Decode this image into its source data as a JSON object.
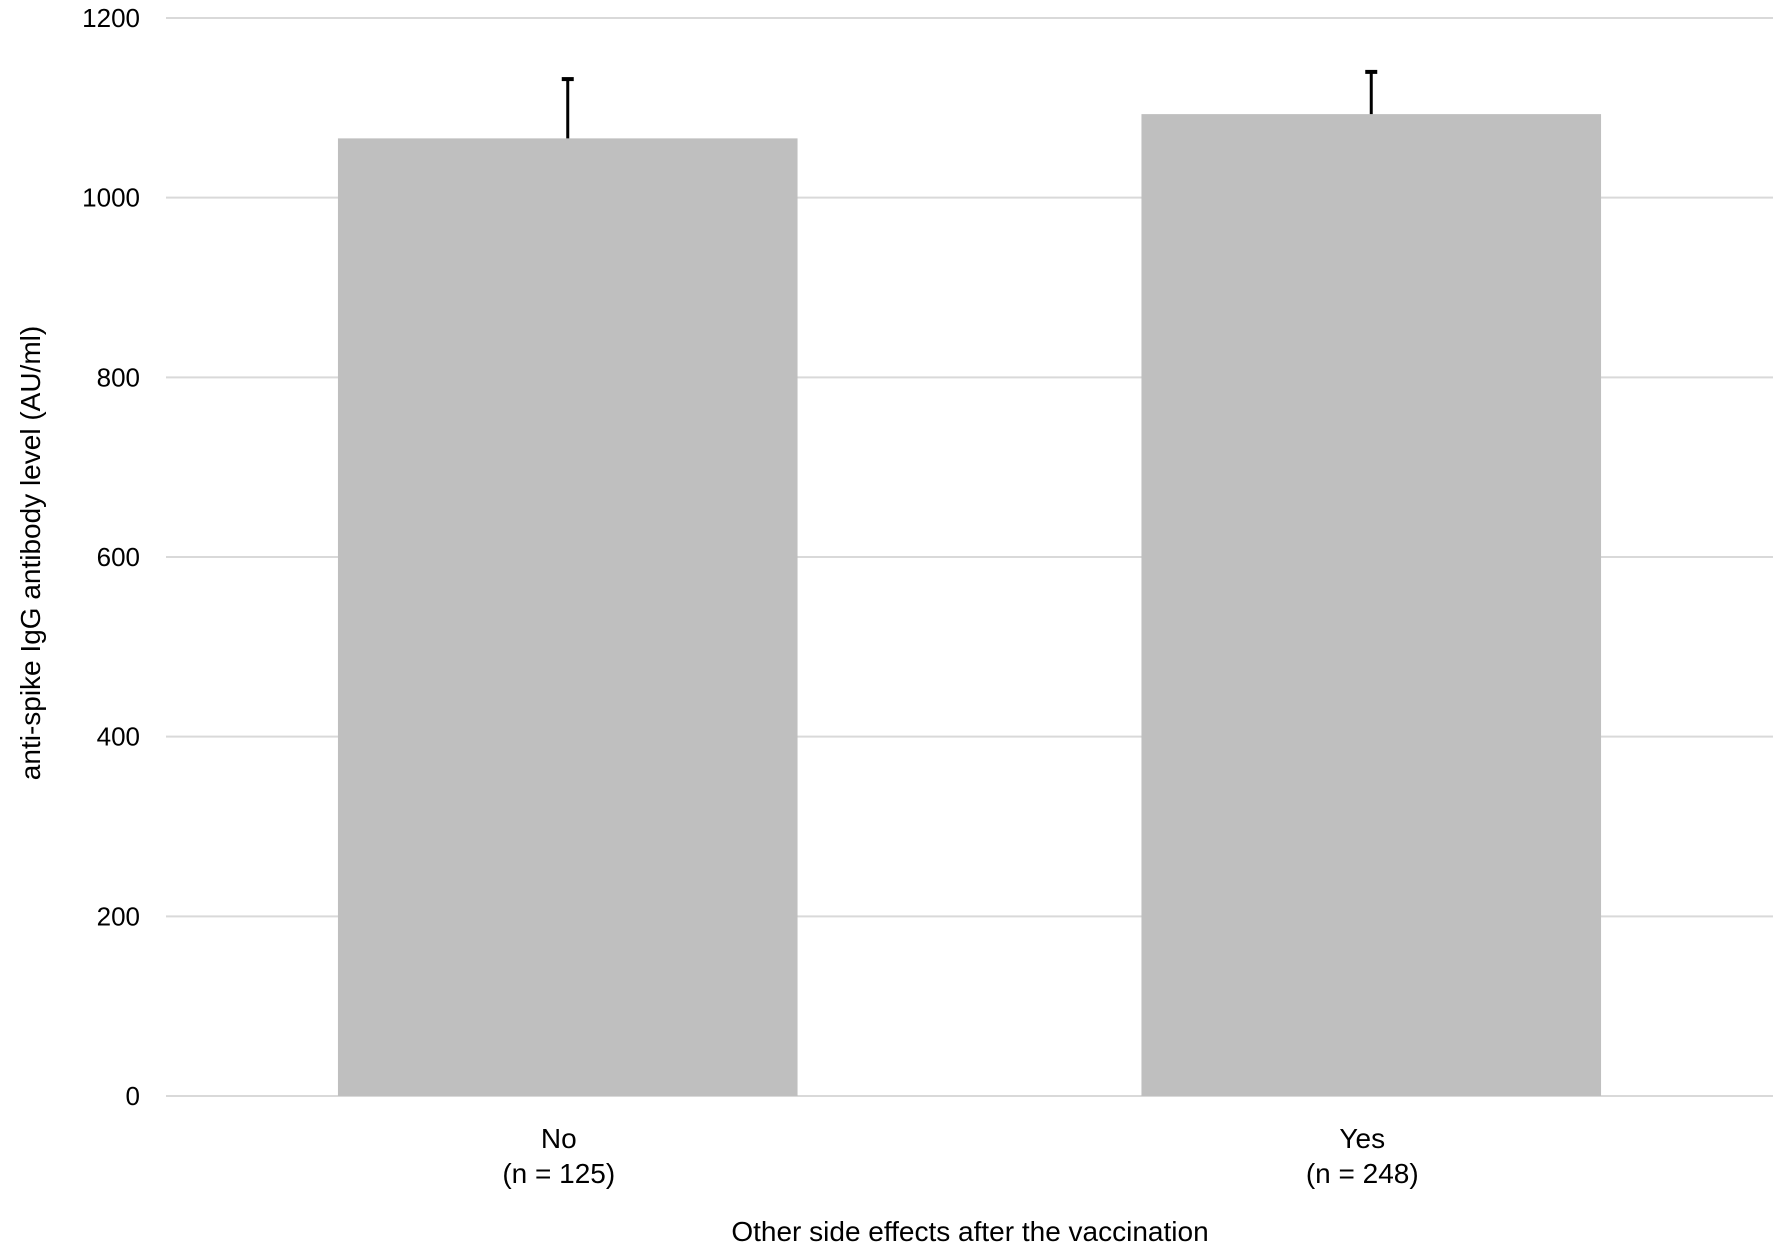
{
  "chart_data": {
    "type": "bar",
    "categories": [
      [
        "No",
        "(n = 125)"
      ],
      [
        "Yes",
        "(n = 248)"
      ]
    ],
    "values": [
      1066,
      1093
    ],
    "error_upper": [
      1132,
      1140
    ],
    "xlabel": "Other side effects after the vaccination",
    "ylabel": "anti-spike IgG antibody level (AU/ml)",
    "ylim": [
      0,
      1200
    ],
    "yticks": [
      0,
      200,
      400,
      600,
      800,
      1000,
      1200
    ],
    "grid": true,
    "bar_color": "#bfbfbf",
    "grid_color": "#d9d9d9",
    "error_bar_color": "#000000"
  }
}
